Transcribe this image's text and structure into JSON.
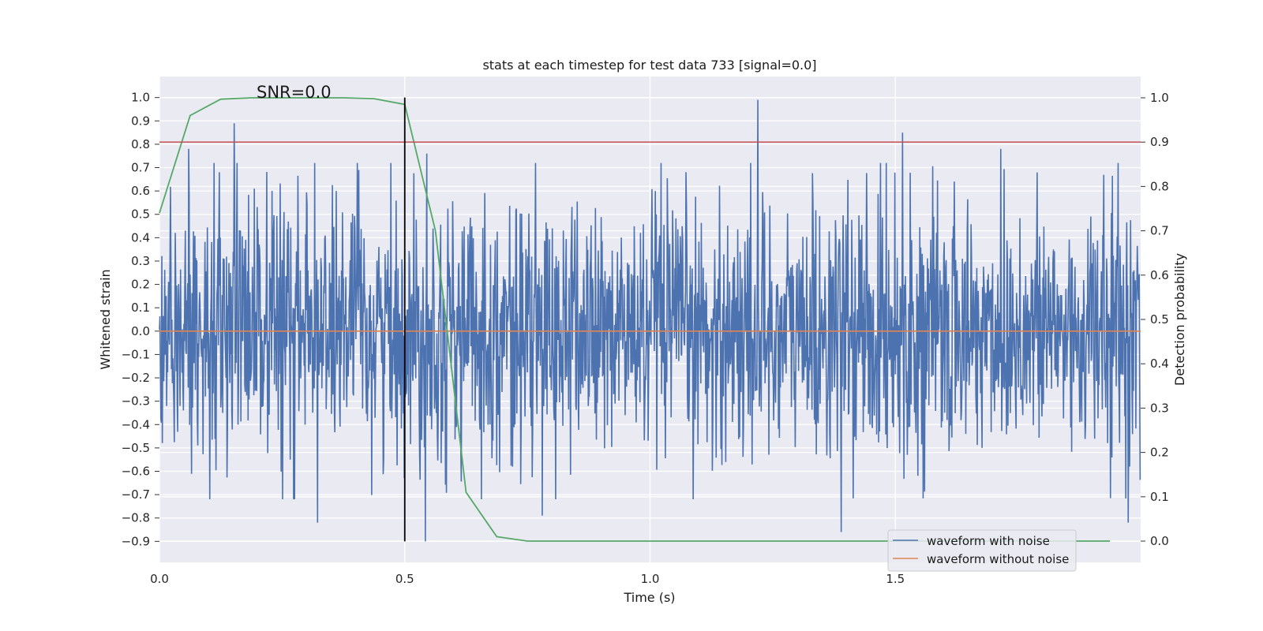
{
  "chart_data": {
    "type": "line",
    "title": "stats at each timestep for test data 733 [signal=0.0]",
    "xlabel": "Time (s)",
    "ylabel": "Whitened strain",
    "y2label": "Detection probability",
    "annotation": "SNR=0.0",
    "xlim": [
      0.0,
      2.0
    ],
    "ylim": [
      -0.99,
      1.09
    ],
    "y2lim": [
      -0.048,
      1.048
    ],
    "x_ticks": [
      0.0,
      0.5,
      1.0,
      1.5
    ],
    "x_tick_labels": [
      "0.0",
      "0.5",
      "1.0",
      "1.5"
    ],
    "y_ticks": [
      -0.9,
      -0.8,
      -0.7,
      -0.6,
      -0.5,
      -0.4,
      -0.3,
      -0.2,
      -0.1,
      0.0,
      0.1,
      0.2,
      0.3,
      0.4,
      0.5,
      0.6,
      0.7,
      0.8,
      0.9,
      1.0
    ],
    "y_tick_labels": [
      "−0.9",
      "−0.8",
      "−0.7",
      "−0.6",
      "−0.5",
      "−0.4",
      "−0.3",
      "−0.2",
      "−0.1",
      "0.0",
      "0.1",
      "0.2",
      "0.3",
      "0.4",
      "0.5",
      "0.6",
      "0.7",
      "0.8",
      "0.9",
      "1.0"
    ],
    "y2_ticks": [
      0.0,
      0.1,
      0.2,
      0.3,
      0.4,
      0.5,
      0.6,
      0.7,
      0.8,
      0.9,
      1.0
    ],
    "y2_tick_labels": [
      "0.0",
      "0.1",
      "0.2",
      "0.3",
      "0.4",
      "0.5",
      "0.6",
      "0.7",
      "0.8",
      "0.9",
      "1.0"
    ],
    "legend_position": "lower-right",
    "series": [
      {
        "name": "waveform with noise",
        "axis": "left",
        "color": "#4c72b0",
        "kind": "noise",
        "n_samples": 2048,
        "amplitude_std": 0.27,
        "peaks": [
          {
            "x": 0.06,
            "y": 0.78
          },
          {
            "x": 0.152,
            "y": 0.89
          },
          {
            "x": 0.322,
            "y": -0.82
          },
          {
            "x": 0.36,
            "y": 0.6
          },
          {
            "x": 0.406,
            "y": 0.69
          },
          {
            "x": 0.545,
            "y": 0.76
          },
          {
            "x": 0.542,
            "y": -0.9
          },
          {
            "x": 0.78,
            "y": -0.79
          },
          {
            "x": 1.22,
            "y": 0.99
          },
          {
            "x": 1.39,
            "y": -0.86
          },
          {
            "x": 1.515,
            "y": 0.85
          },
          {
            "x": 1.715,
            "y": 0.78
          },
          {
            "x": 1.975,
            "y": -0.82
          }
        ]
      },
      {
        "name": "waveform without noise",
        "axis": "left",
        "color": "#dd8452",
        "x": [
          0.0,
          2.0
        ],
        "y": [
          0.0,
          0.0
        ]
      },
      {
        "name": "detection probability",
        "axis": "right",
        "color": "#55a868",
        "in_legend": false,
        "x": [
          0.0,
          0.0625,
          0.125,
          0.1875,
          0.25,
          0.3125,
          0.375,
          0.4375,
          0.5,
          0.5625,
          0.625,
          0.6875,
          0.75,
          0.8125,
          1.0,
          1.5,
          1.9375
        ],
        "y": [
          0.74,
          0.96,
          0.997,
          1.0,
          1.0,
          1.0,
          1.0,
          0.998,
          0.985,
          0.7,
          0.11,
          0.01,
          0.0,
          0.0,
          0.0,
          0.0,
          0.0
        ]
      }
    ],
    "reference_lines": [
      {
        "name": "threshold",
        "orientation": "horizontal",
        "axis": "right",
        "value": 0.9,
        "color": "#c44e52"
      },
      {
        "name": "marker",
        "orientation": "vertical",
        "axis": "x",
        "value": 0.5,
        "color": "#000000"
      }
    ]
  }
}
